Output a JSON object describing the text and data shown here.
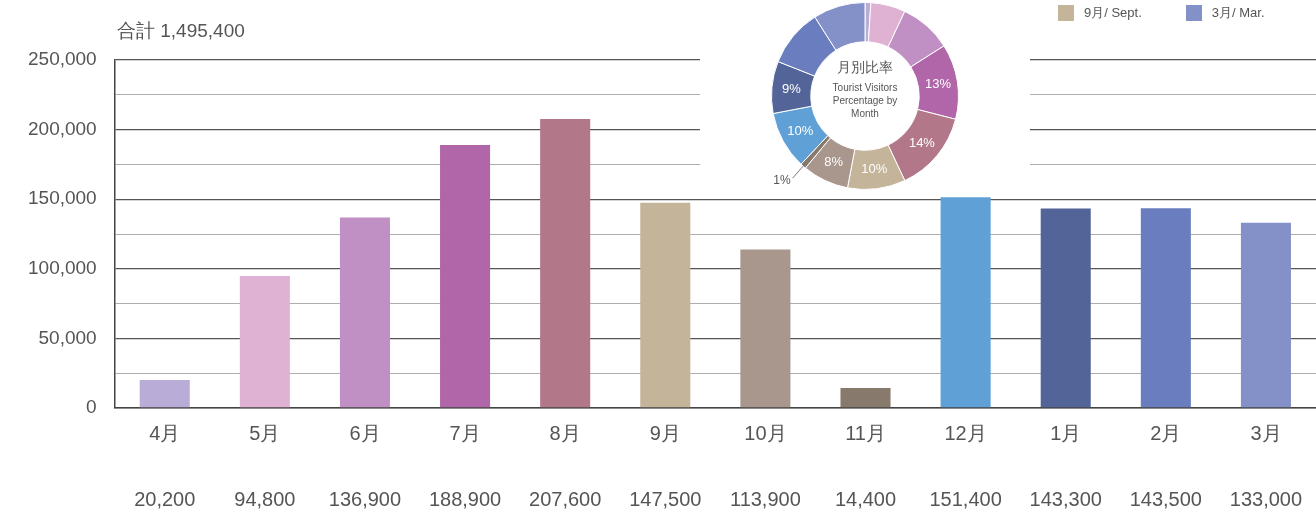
{
  "chart_data": [
    {
      "type": "bar",
      "title": "合計 1,495,400",
      "categories": [
        "4月",
        "5月",
        "6月",
        "7月",
        "8月",
        "9月",
        "10月",
        "11月",
        "12月",
        "1月",
        "2月",
        "3月"
      ],
      "values": [
        20200,
        94800,
        136900,
        188900,
        207600,
        147500,
        113900,
        14400,
        151400,
        143300,
        143500,
        133000
      ],
      "colors": [
        "#b9acd6",
        "#dfb1d3",
        "#c08fc3",
        "#b066a8",
        "#b27789",
        "#c4b49a",
        "#a9968d",
        "#877a6c",
        "#5fa0d6",
        "#536598",
        "#6a7dbf",
        "#8490c8"
      ],
      "ylim": [
        0,
        250000
      ],
      "yticks": [
        0,
        {
          "value": 25000,
          "label": null
        },
        {
          "value": 50000,
          "label": "50,000"
        },
        {
          "value": 75000,
          "label": null
        },
        {
          "value": 100000,
          "label": "100,000"
        },
        {
          "value": 125000,
          "label": null
        },
        {
          "value": 150000,
          "label": "150,000"
        },
        {
          "value": 175000,
          "label": null
        },
        {
          "value": 200000,
          "label": "200,000"
        },
        {
          "value": 225000,
          "label": null
        },
        {
          "value": 250000,
          "label": "250,000"
        }
      ],
      "value_labels": [
        "20,200",
        "94,800",
        "136,900",
        "188,900",
        "207,600",
        "147,500",
        "113,900",
        "14,400",
        "151,400",
        "143,300",
        "143,500",
        "133,000"
      ],
      "grid": "y",
      "legend": false
    },
    {
      "type": "donut",
      "title": "月別比率",
      "subtitle": "Tourist Visitors Percentage by Month",
      "categories": [
        null,
        null,
        null,
        null,
        null,
        "9月/ Sept.",
        null,
        null,
        null,
        null,
        null,
        "3月/ Mar."
      ],
      "values": [
        1,
        6,
        9,
        13,
        14,
        10,
        8,
        1,
        10,
        9,
        10,
        9
      ],
      "value_labels": [
        null,
        null,
        null,
        "13%",
        "14%",
        "10%",
        "8%",
        "1%",
        "10%",
        "9%",
        null,
        null
      ],
      "colors": [
        "#b9acd6",
        "#dfb1d3",
        "#c08fc3",
        "#b066a8",
        "#b27789",
        "#c4b49a",
        "#a9968d",
        "#877a6c",
        "#5fa0d6",
        "#536598",
        "#6a7dbf",
        "#8490c8"
      ],
      "legend": "top right"
    }
  ]
}
